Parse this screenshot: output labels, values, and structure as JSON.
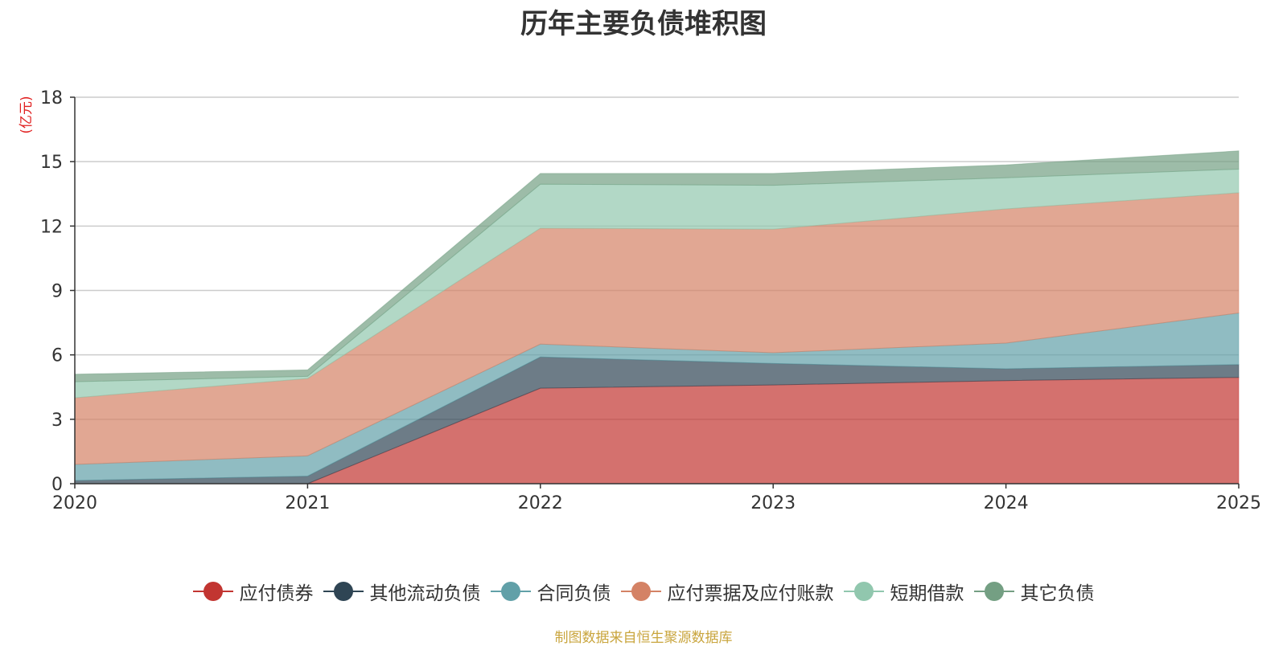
{
  "chart_data": {
    "type": "area",
    "stacked": true,
    "title": "历年主要负债堆积图",
    "yunit": "(亿元)",
    "categories": [
      "2020",
      "2021",
      "2022",
      "2023",
      "2024",
      "2025"
    ],
    "ylim": [
      0,
      18
    ],
    "yticks": [
      0,
      3,
      6,
      9,
      12,
      15,
      18
    ],
    "grid": true,
    "legend_position": "bottom",
    "series": [
      {
        "name": "应付债券",
        "color": "#c23531",
        "values": [
          0,
          0,
          4.45,
          4.6,
          4.8,
          4.95
        ]
      },
      {
        "name": "其他流动负债",
        "color": "#2f4554",
        "values": [
          0.15,
          0.35,
          1.45,
          1.0,
          0.55,
          0.6
        ]
      },
      {
        "name": "合同负债",
        "color": "#61a0a8",
        "values": [
          0.75,
          0.95,
          0.6,
          0.5,
          1.2,
          2.4
        ]
      },
      {
        "name": "应付票据及应付账款",
        "color": "#d48265",
        "values": [
          3.1,
          3.6,
          5.4,
          5.75,
          6.25,
          5.6
        ]
      },
      {
        "name": "短期借款",
        "color": "#91c7ae",
        "values": [
          0.75,
          0.1,
          2.05,
          2.05,
          1.45,
          1.1
        ]
      },
      {
        "name": "其它负债",
        "color": "#749f83",
        "values": [
          0.35,
          0.3,
          0.5,
          0.55,
          0.6,
          0.85
        ]
      }
    ]
  },
  "footer": {
    "source": "制图数据来自恒生聚源数据库"
  }
}
